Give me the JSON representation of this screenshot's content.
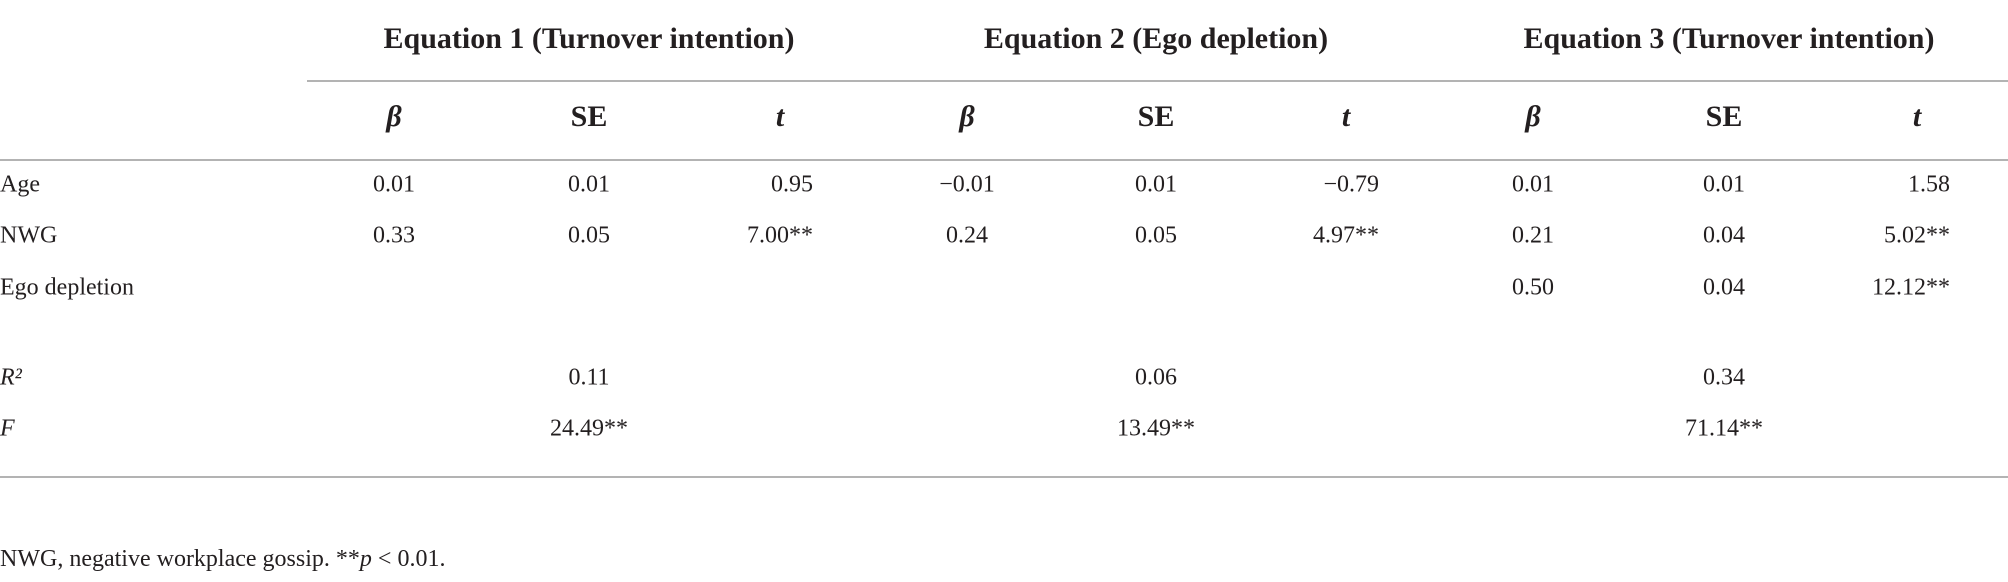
{
  "table": {
    "groups": [
      "Equation 1 (Turnover intention)",
      "Equation 2 (Ego depletion)",
      "Equation 3 (Turnover intention)"
    ],
    "subheaders": [
      "β",
      "SE",
      "t",
      "β",
      "SE",
      "t",
      "β",
      "SE",
      "t"
    ],
    "rows": [
      {
        "label": "Age",
        "cells": [
          "0.01",
          "0.01",
          "0.95",
          "−0.01",
          "0.01",
          "−0.79",
          "0.01",
          "0.01",
          "1.58"
        ]
      },
      {
        "label": "NWG",
        "cells": [
          "0.33",
          "0.05",
          "7.00**",
          "0.24",
          "0.05",
          "4.97**",
          "0.21",
          "0.04",
          "5.02**"
        ]
      },
      {
        "label": "Ego depletion",
        "cells": [
          null,
          null,
          null,
          null,
          null,
          null,
          "0.50",
          "0.04",
          "12.12**"
        ]
      },
      {
        "label": "R²",
        "cells": [
          null,
          "0.11",
          null,
          null,
          "0.06",
          null,
          null,
          "0.34",
          null
        ]
      },
      {
        "label": "F",
        "cells": [
          null,
          "24.49**",
          null,
          null,
          "13.49**",
          null,
          null,
          "71.14**",
          null
        ]
      }
    ],
    "note": [
      "NWG, negative workplace gossip. **",
      "p",
      " < 0.01."
    ]
  }
}
